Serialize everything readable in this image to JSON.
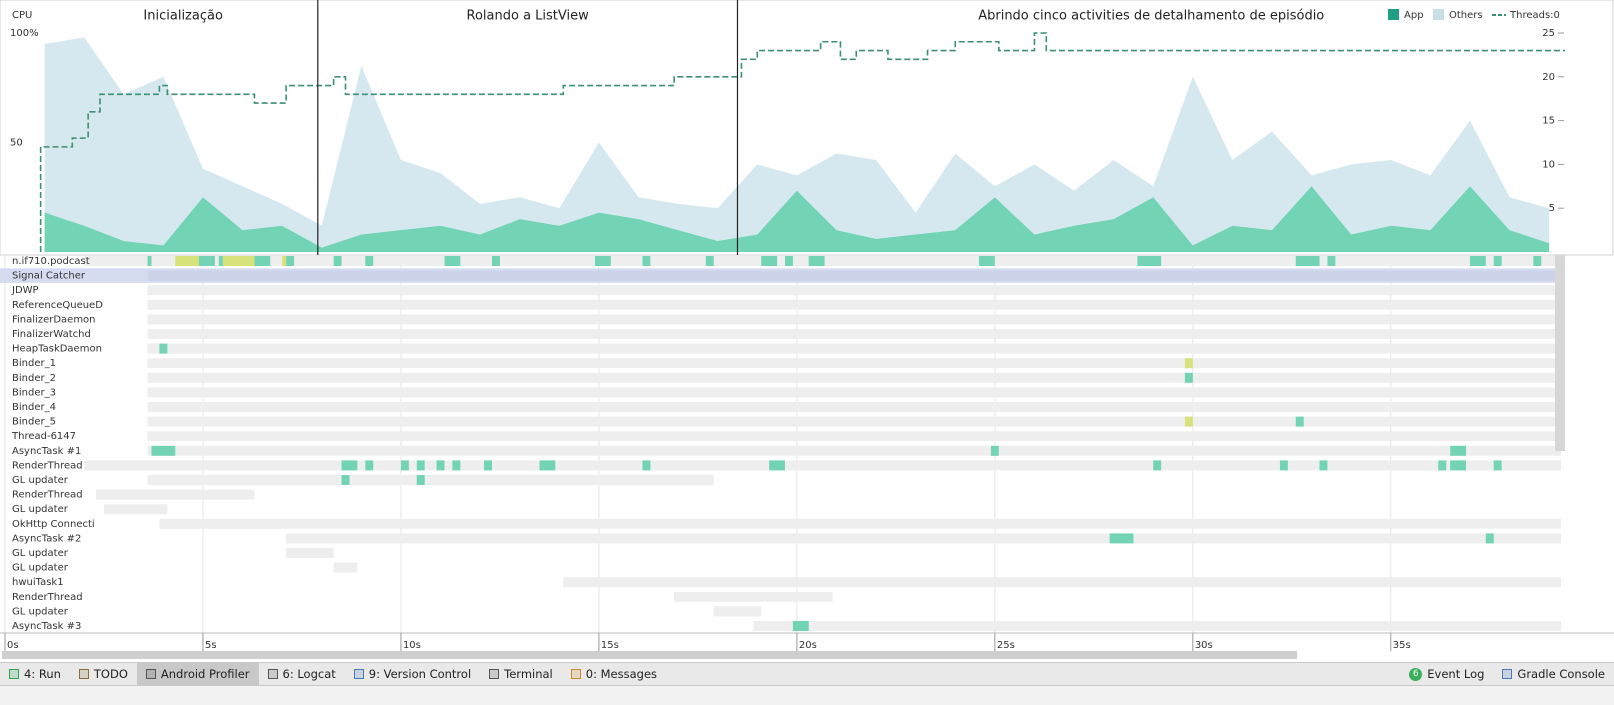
{
  "cpu": {
    "type": "area",
    "title": "CPU",
    "x": [
      1,
      2,
      3,
      4,
      5,
      6,
      7,
      8,
      9,
      10,
      11,
      12,
      13,
      14,
      15,
      16,
      17,
      18,
      19,
      20,
      21,
      22,
      23,
      24,
      25,
      26,
      27,
      28,
      29,
      30,
      31,
      32,
      33,
      34,
      35,
      36,
      37,
      38,
      39
    ],
    "series": [
      {
        "name": "App",
        "color": "#72d3b5",
        "legend_color": "#1f9e85",
        "values": [
          18,
          12,
          5,
          3,
          25,
          10,
          12,
          2,
          8,
          10,
          12,
          8,
          15,
          12,
          18,
          15,
          10,
          5,
          8,
          28,
          10,
          6,
          8,
          10,
          25,
          8,
          12,
          15,
          25,
          3,
          12,
          10,
          30,
          8,
          12,
          10,
          30,
          10,
          4
        ]
      },
      {
        "name": "Others",
        "color": "#d6e8ef",
        "legend_color": "#c9dfe8",
        "values": [
          77,
          86,
          67,
          77,
          13,
          20,
          10,
          10,
          77,
          32,
          24,
          14,
          10,
          8,
          32,
          10,
          12,
          15,
          32,
          7,
          35,
          36,
          10,
          35,
          5,
          32,
          16,
          27,
          5,
          77,
          30,
          45,
          5,
          32,
          30,
          25,
          30,
          15,
          16
        ]
      }
    ],
    "threads": {
      "name": "Threads:0",
      "color": "#3d8f72",
      "x": [
        0.9,
        1.7,
        2.1,
        2.4,
        3.9,
        4.1,
        6.3,
        7.1,
        8.3,
        8.6,
        14.1,
        16.9,
        18.6,
        19.0,
        20.6,
        21.1,
        21.5,
        22.3,
        23.3,
        24.0,
        25.1,
        26.0,
        26.3,
        39.4
      ],
      "values": [
        12,
        13,
        16,
        18,
        19,
        18,
        17,
        19,
        20,
        18,
        19,
        20,
        22,
        23,
        24,
        22,
        23,
        22,
        23,
        24,
        23,
        25,
        23,
        23
      ]
    },
    "ylim": [
      0,
      100
    ],
    "yticks": [
      {
        "value": 100,
        "label": "100%"
      },
      50
    ],
    "y2lim": [
      0,
      25
    ],
    "y2ticks": [
      5,
      10,
      15,
      20,
      25
    ]
  },
  "sections": [
    {
      "label": "Inicialização",
      "start": 1.1,
      "end": 7.9
    },
    {
      "label": "Rolando a ListView",
      "start": 7.9,
      "end": 18.5
    },
    {
      "label": "Abrindo cinco activities de detalhamento de episódio",
      "start": 18.5,
      "end": 39.4
    }
  ],
  "timeline": {
    "xlim": [
      0,
      39.4
    ],
    "xticks": [
      {
        "value": 0,
        "label": "0s"
      },
      {
        "value": 5,
        "label": "5s"
      },
      {
        "value": 10,
        "label": "10s"
      },
      {
        "value": 15,
        "label": "15s"
      },
      {
        "value": 20,
        "label": "20s"
      },
      {
        "value": 25,
        "label": "25s"
      },
      {
        "value": 30,
        "label": "30s"
      },
      {
        "value": 35,
        "label": "35s"
      }
    ]
  },
  "selected_thread": 1,
  "threads": [
    {
      "name": "n.if710.podcast",
      "start": 2.0,
      "end": 39.3,
      "green": [
        [
          3.6,
          3.7
        ],
        [
          4.9,
          5.3
        ],
        [
          5.4,
          5.6
        ],
        [
          6.3,
          6.7
        ],
        [
          7.1,
          7.3
        ],
        [
          8.3,
          8.5
        ],
        [
          9.1,
          9.3
        ],
        [
          11.1,
          11.5
        ],
        [
          12.3,
          12.5
        ],
        [
          14.9,
          15.3
        ],
        [
          16.1,
          16.3
        ],
        [
          17.7,
          17.9
        ],
        [
          19.1,
          19.5
        ],
        [
          19.7,
          19.9
        ],
        [
          20.3,
          20.7
        ],
        [
          24.6,
          25.0
        ],
        [
          28.6,
          29.2
        ],
        [
          32.6,
          33.2
        ],
        [
          33.4,
          33.6
        ],
        [
          37.0,
          37.4
        ],
        [
          37.6,
          37.8
        ],
        [
          38.6,
          38.8
        ]
      ],
      "yellow": [
        [
          4.3,
          4.9
        ],
        [
          5.5,
          6.3
        ],
        [
          7.0,
          7.1
        ]
      ]
    },
    {
      "name": "Signal Catcher",
      "start": 3.6,
      "end": 39.3,
      "green": [],
      "yellow": []
    },
    {
      "name": "JDWP",
      "start": 3.6,
      "end": 39.3,
      "green": [],
      "yellow": []
    },
    {
      "name": "ReferenceQueueD",
      "start": 3.6,
      "end": 39.3,
      "green": [],
      "yellow": []
    },
    {
      "name": "FinalizerDaemon",
      "start": 3.6,
      "end": 39.3,
      "green": [],
      "yellow": []
    },
    {
      "name": "FinalizerWatchd",
      "start": 3.6,
      "end": 39.3,
      "green": [],
      "yellow": []
    },
    {
      "name": "HeapTaskDaemon",
      "start": 3.6,
      "end": 39.3,
      "green": [
        [
          3.9,
          4.1
        ]
      ],
      "yellow": []
    },
    {
      "name": "Binder_1",
      "start": 3.6,
      "end": 39.3,
      "green": [],
      "yellow": [
        [
          29.8,
          30.0
        ]
      ]
    },
    {
      "name": "Binder_2",
      "start": 3.6,
      "end": 39.3,
      "green": [
        [
          29.8,
          30.0
        ]
      ],
      "yellow": []
    },
    {
      "name": "Binder_3",
      "start": 3.6,
      "end": 39.3,
      "green": [],
      "yellow": []
    },
    {
      "name": "Binder_4",
      "start": 3.6,
      "end": 39.3,
      "green": [],
      "yellow": []
    },
    {
      "name": "Binder_5",
      "start": 3.6,
      "end": 39.3,
      "green": [
        [
          32.6,
          32.8
        ]
      ],
      "yellow": [
        [
          29.8,
          30.0
        ]
      ]
    },
    {
      "name": "Thread-6147",
      "start": 3.6,
      "end": 39.3,
      "green": [],
      "yellow": []
    },
    {
      "name": "AsyncTask #1",
      "start": 3.6,
      "end": 39.3,
      "green": [
        [
          3.7,
          4.3
        ],
        [
          24.9,
          25.1
        ],
        [
          36.5,
          36.9
        ]
      ],
      "yellow": []
    },
    {
      "name": "RenderThread",
      "start": 2.0,
      "end": 39.3,
      "green": [
        [
          8.5,
          8.9
        ],
        [
          9.1,
          9.3
        ],
        [
          10.0,
          10.2
        ],
        [
          10.4,
          10.6
        ],
        [
          10.9,
          11.1
        ],
        [
          11.3,
          11.5
        ],
        [
          12.1,
          12.3
        ],
        [
          13.5,
          13.9
        ],
        [
          16.1,
          16.3
        ],
        [
          19.3,
          19.7
        ],
        [
          29.0,
          29.2
        ],
        [
          32.2,
          32.4
        ],
        [
          33.2,
          33.4
        ],
        [
          36.2,
          36.4
        ],
        [
          36.5,
          36.9
        ],
        [
          37.6,
          37.8
        ]
      ],
      "yellow": []
    },
    {
      "name": "GL updater",
      "start": 3.6,
      "end": 17.9,
      "green": [
        [
          8.5,
          8.7
        ],
        [
          10.4,
          10.6
        ]
      ],
      "yellow": []
    },
    {
      "name": "RenderThread",
      "start": 2.3,
      "end": 6.3,
      "green": [],
      "yellow": []
    },
    {
      "name": "GL updater",
      "start": 2.5,
      "end": 4.1,
      "green": [],
      "yellow": []
    },
    {
      "name": "OkHttp Connecti",
      "start": 3.9,
      "end": 39.3,
      "green": [],
      "yellow": []
    },
    {
      "name": "AsyncTask #2",
      "start": 7.1,
      "end": 39.3,
      "green": [
        [
          27.9,
          28.5
        ],
        [
          37.4,
          37.6
        ]
      ],
      "yellow": []
    },
    {
      "name": "GL updater",
      "start": 7.1,
      "end": 8.3,
      "green": [],
      "yellow": []
    },
    {
      "name": "GL updater",
      "start": 8.3,
      "end": 8.9,
      "green": [],
      "yellow": []
    },
    {
      "name": "hwuiTask1",
      "start": 14.1,
      "end": 39.3,
      "green": [],
      "yellow": []
    },
    {
      "name": "RenderThread",
      "start": 16.9,
      "end": 20.9,
      "green": [],
      "yellow": []
    },
    {
      "name": "GL updater",
      "start": 17.9,
      "end": 19.1,
      "green": [],
      "yellow": []
    },
    {
      "name": "AsyncTask #3",
      "start": 18.9,
      "end": 39.3,
      "green": [
        [
          19.9,
          20.3
        ]
      ],
      "yellow": []
    }
  ],
  "toolbar": {
    "active": 2,
    "left": [
      {
        "label": "4: Run",
        "icon": "#2ea44f"
      },
      {
        "label": "TODO",
        "icon": "#8a6d3b"
      },
      {
        "label": "Android Profiler",
        "icon": "#555555"
      },
      {
        "label": "6: Logcat",
        "icon": "#555555"
      },
      {
        "label": "9: Version Control",
        "icon": "#4a7bb7"
      },
      {
        "label": "Terminal",
        "icon": "#555555"
      },
      {
        "label": "0: Messages",
        "icon": "#d08a2c"
      }
    ],
    "right": [
      {
        "label": "Event Log",
        "badge": "6"
      },
      {
        "label": "Gradle Console",
        "icon": "#4a7bb7"
      }
    ]
  }
}
